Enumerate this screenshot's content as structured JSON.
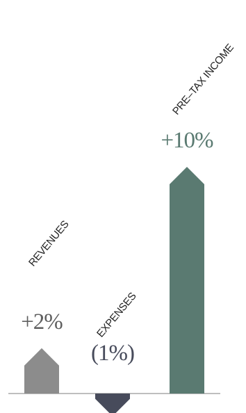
{
  "chart_data": {
    "type": "bar",
    "categories": [
      "REVENUES",
      "EXPENSES",
      "PRE–TAX INCOME"
    ],
    "values": [
      2,
      -1,
      10
    ],
    "value_labels": [
      "+2%",
      "(1%)",
      "+10%"
    ],
    "unit": "%",
    "bar_shape": "arrow",
    "grid": false,
    "legend": "none",
    "colors": {
      "bars": [
        "#8c8c8c",
        "#474b5b",
        "#5a7a71"
      ],
      "value_labels": [
        "#5f5f5f",
        "#474b5b",
        "#5a7a71"
      ],
      "baseline": "#a8a8a8",
      "category_labels": "#222222"
    }
  }
}
